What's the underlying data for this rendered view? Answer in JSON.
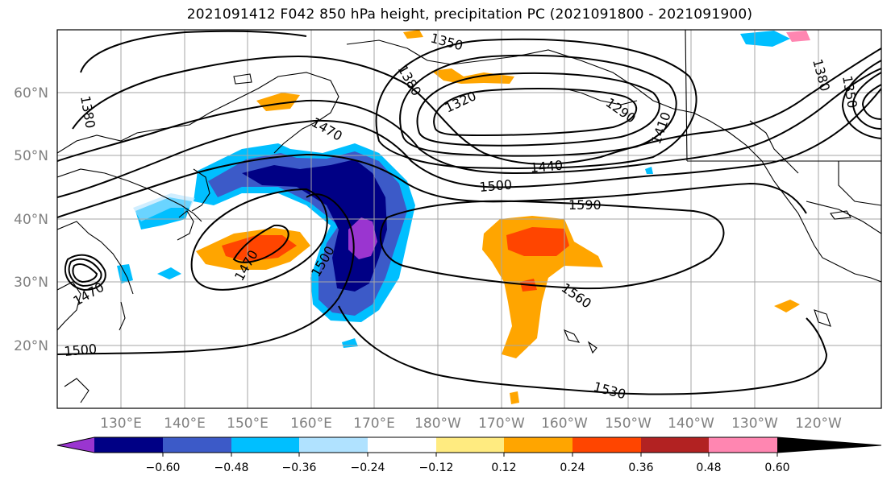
{
  "title": "2021091412 F042 850 hPa height, precipitation PC (2021091800 - 2021091900)",
  "map": {
    "lat_labels": [
      "60°N",
      "50°N",
      "40°N",
      "30°N",
      "20°N"
    ],
    "lon_labels": [
      "130°E",
      "140°E",
      "150°E",
      "160°E",
      "170°E",
      "180°W",
      "170°W",
      "160°W",
      "150°W",
      "140°W",
      "130°W",
      "120°W"
    ],
    "contour_labels": [
      "1350",
      "1380",
      "1320",
      "1290",
      "1380",
      "1410",
      "1470",
      "1440",
      "1500",
      "1590",
      "1470",
      "1500",
      "1560",
      "1470",
      "1500",
      "1530",
      "1380",
      "1350"
    ]
  },
  "colorbar": {
    "ticks": [
      "−0.60",
      "−0.48",
      "−0.36",
      "−0.24",
      "−0.12",
      "0.12",
      "0.24",
      "0.36",
      "0.48",
      "0.60"
    ],
    "colors": [
      "#9a35d0",
      "#000085",
      "#3c5ac8",
      "#00bfff",
      "#b0e2ff",
      "#ffffff",
      "#ffeb80",
      "#ffa500",
      "#ff4500",
      "#b22222",
      "#ff86b1"
    ]
  }
}
